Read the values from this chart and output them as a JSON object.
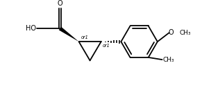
{
  "background_color": "#ffffff",
  "line_color": "#000000",
  "line_width": 1.3,
  "font_size": 6.5,
  "figsize": [
    3.04,
    1.3
  ],
  "dpi": 100,
  "xlim": [
    0.0,
    9.5
  ],
  "ylim": [
    0.3,
    4.2
  ]
}
